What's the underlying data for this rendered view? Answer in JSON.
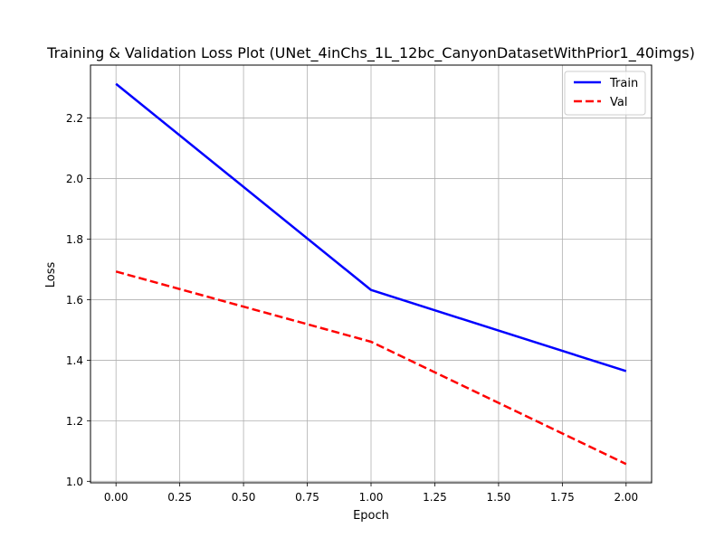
{
  "chart_data": {
    "type": "line",
    "title": "Training & Validation Loss Plot (UNet_4inChs_1L_12bc_CanyonDatasetWithPrior1_40imgs)",
    "xlabel": "Epoch",
    "ylabel": "Loss",
    "xlim": [
      -0.1,
      2.1
    ],
    "ylim": [
      0.995,
      2.375
    ],
    "grid": true,
    "legend": "top-right",
    "xticks": [
      0.0,
      0.25,
      0.5,
      0.75,
      1.0,
      1.25,
      1.5,
      1.75,
      2.0
    ],
    "xtick_labels": [
      "0.00",
      "0.25",
      "0.50",
      "0.75",
      "1.00",
      "1.25",
      "1.50",
      "1.75",
      "2.00"
    ],
    "yticks": [
      1.0,
      1.2,
      1.4,
      1.6,
      1.8,
      2.0,
      2.2
    ],
    "ytick_labels": [
      "1.0",
      "1.2",
      "1.4",
      "1.6",
      "1.8",
      "2.0",
      "2.2"
    ],
    "x": [
      0,
      1,
      2
    ],
    "series": [
      {
        "name": "Train",
        "values": [
          2.313,
          1.632,
          1.364
        ],
        "color": "#0000ff",
        "linestyle": "solid"
      },
      {
        "name": "Val",
        "values": [
          1.693,
          1.461,
          1.057
        ],
        "color": "#ff0000",
        "linestyle": "dashed"
      }
    ]
  }
}
